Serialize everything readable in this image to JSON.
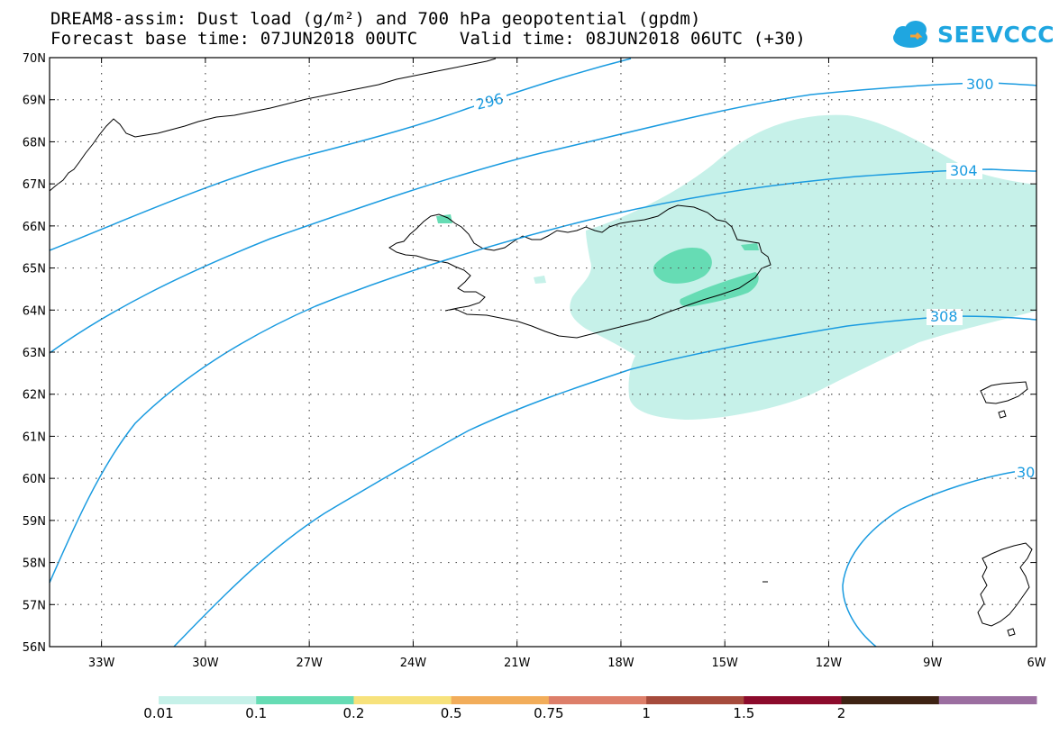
{
  "title": {
    "line1": "DREAM8-assim: Dust load (g/m²) and 700 hPa geopotential (gpdm)",
    "line2": "Forecast base time: 07JUN2018 00UTC    Valid time: 08JUN2018 06UTC (+30)"
  },
  "logo": {
    "text": "SEEVCCC",
    "color": "#1fa6e0"
  },
  "map": {
    "lon_range": [
      -34.5,
      -6
    ],
    "lat_range": [
      56,
      70
    ],
    "lat_ticks": [
      "70N",
      "69N",
      "68N",
      "67N",
      "66N",
      "65N",
      "64N",
      "63N",
      "62N",
      "61N",
      "60N",
      "59N",
      "58N",
      "57N",
      "56N"
    ],
    "lon_ticks": [
      "33W",
      "30W",
      "27W",
      "24W",
      "21W",
      "18W",
      "15W",
      "12W",
      "9W",
      "6W"
    ],
    "grid": "dotted"
  },
  "contours": {
    "color": "#1a9be0",
    "labels": [
      "296",
      "300",
      "304",
      "308",
      "30"
    ]
  },
  "colorbar": {
    "colors": [
      "#c6f1e9",
      "#66dcb4",
      "#f7e27c",
      "#f2ad5a",
      "#dd7f6a",
      "#a64b3c",
      "#8c0b2c",
      "#3e2314",
      "#9b6ea0"
    ],
    "labels": [
      "0.01",
      "0.1",
      "0.2",
      "0.5",
      "0.75",
      "1",
      "1.5",
      "2"
    ]
  }
}
